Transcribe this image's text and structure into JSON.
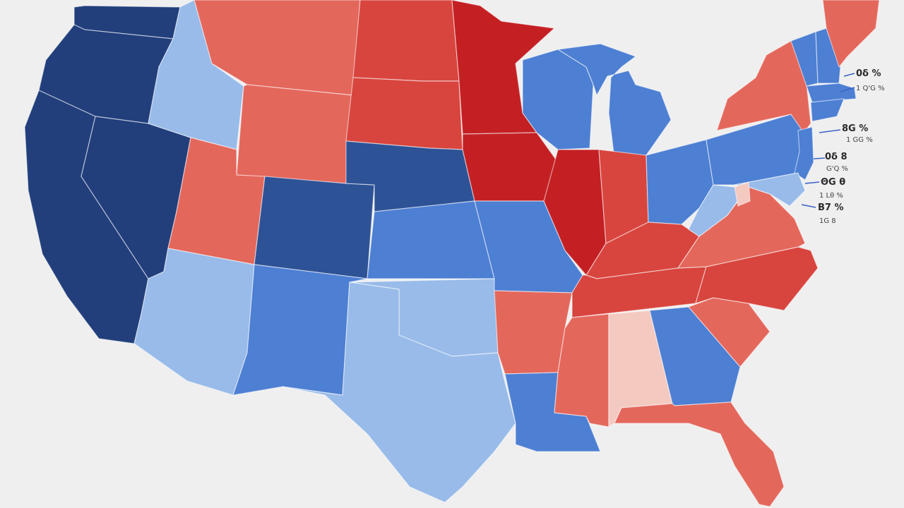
{
  "palette": {
    "background": "#efefef",
    "water": "#efefef",
    "dark_blue": "#223f7c",
    "navy_blue": "#2e5296",
    "mid_blue": "#4d7fd3",
    "light_blue": "#98bbe9",
    "pale_red": "#f4c9c0",
    "light_red": "#e4675c",
    "mid_red": "#d8453e",
    "dark_red": "#c42024"
  },
  "states": [
    {
      "name": "Washington",
      "color_key": "dark_blue"
    },
    {
      "name": "Oregon",
      "color_key": "dark_blue"
    },
    {
      "name": "California",
      "color_key": "dark_blue"
    },
    {
      "name": "Nevada",
      "color_key": "dark_blue"
    },
    {
      "name": "Idaho",
      "color_key": "light_blue"
    },
    {
      "name": "Montana",
      "color_key": "light_red"
    },
    {
      "name": "Wyoming",
      "color_key": "light_red"
    },
    {
      "name": "Utah",
      "color_key": "light_red"
    },
    {
      "name": "Arizona",
      "color_key": "light_blue"
    },
    {
      "name": "Colorado",
      "color_key": "navy_blue"
    },
    {
      "name": "New Mexico",
      "color_key": "mid_blue"
    },
    {
      "name": "North Dakota",
      "color_key": "mid_red"
    },
    {
      "name": "South Dakota",
      "color_key": "mid_red"
    },
    {
      "name": "Nebraska",
      "color_key": "navy_blue"
    },
    {
      "name": "Kansas",
      "color_key": "mid_blue"
    },
    {
      "name": "Oklahoma",
      "color_key": "light_blue"
    },
    {
      "name": "Texas",
      "color_key": "light_blue"
    },
    {
      "name": "Minnesota",
      "color_key": "dark_red"
    },
    {
      "name": "Iowa",
      "color_key": "dark_red"
    },
    {
      "name": "Missouri",
      "color_key": "mid_blue"
    },
    {
      "name": "Arkansas",
      "color_key": "light_red"
    },
    {
      "name": "Louisiana",
      "color_key": "mid_blue"
    },
    {
      "name": "Wisconsin",
      "color_key": "mid_blue"
    },
    {
      "name": "Illinois",
      "color_key": "dark_red"
    },
    {
      "name": "Michigan",
      "color_key": "mid_blue"
    },
    {
      "name": "Indiana",
      "color_key": "mid_red"
    },
    {
      "name": "Ohio",
      "color_key": "mid_blue"
    },
    {
      "name": "Kentucky",
      "color_key": "mid_red"
    },
    {
      "name": "Tennessee",
      "color_key": "mid_red"
    },
    {
      "name": "Mississippi",
      "color_key": "light_red"
    },
    {
      "name": "Alabama",
      "color_key": "pale_red"
    },
    {
      "name": "Georgia",
      "color_key": "mid_blue"
    },
    {
      "name": "Florida",
      "color_key": "light_red"
    },
    {
      "name": "South Carolina",
      "color_key": "light_red"
    },
    {
      "name": "North Carolina",
      "color_key": "mid_red"
    },
    {
      "name": "Virginia",
      "color_key": "light_red"
    },
    {
      "name": "West Virginia",
      "color_key": "light_blue"
    },
    {
      "name": "Pennsylvania",
      "color_key": "mid_blue"
    },
    {
      "name": "New York",
      "color_key": "light_red"
    },
    {
      "name": "Vermont",
      "color_key": "mid_blue"
    },
    {
      "name": "New Hampshire",
      "color_key": "mid_blue"
    },
    {
      "name": "Maine",
      "color_key": "light_red"
    },
    {
      "name": "Massachusetts",
      "color_key": "mid_blue"
    },
    {
      "name": "Connecticut",
      "color_key": "mid_blue"
    },
    {
      "name": "New Jersey",
      "color_key": "mid_blue"
    },
    {
      "name": "Maryland",
      "color_key": "light_blue"
    },
    {
      "name": "Delaware",
      "color_key": "pale_red"
    }
  ],
  "northeast_labels": [
    {
      "main": "0δ %",
      "sub": ""
    },
    {
      "main": "",
      "sub": "1 Q'G %"
    },
    {
      "main": "8G %",
      "sub": "1 GG %"
    },
    {
      "main": "0δ 8",
      "sub": "G'Q %"
    },
    {
      "main": "ΘG θ",
      "sub": "1 Lθ %"
    },
    {
      "main": "B7 %",
      "sub": "1G 8"
    }
  ]
}
